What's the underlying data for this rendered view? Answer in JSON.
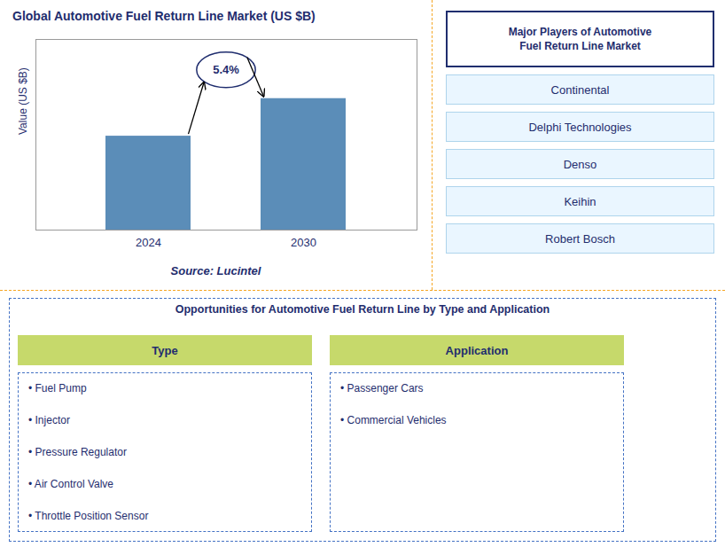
{
  "chart_data": {
    "type": "bar",
    "title": "Global Automotive Fuel Return Line Market (US $B)",
    "ylabel": "Value (US $B)",
    "categories": [
      "2024",
      "2030"
    ],
    "values": [
      3.0,
      4.2
    ],
    "color": "#5B8DB8",
    "ylim": [
      0,
      6.09
    ],
    "yticks": [],
    "grid": false,
    "tick_labels": "x",
    "annotations": [
      "5.4%",
      "Source: Lucintel"
    ]
  },
  "major_players": {
    "title": "Major Players of Automotive\nFuel Return Line Market",
    "items": [
      "Continental",
      "Delphi Technologies",
      "Denso",
      "Keihin",
      "Robert Bosch"
    ]
  },
  "opportunities": {
    "title": "Opportunities for Automotive Fuel Return Line by Type and Application",
    "columns": [
      {
        "header": "Type",
        "items": [
          "• Fuel Pump",
          "• Injector",
          "• Pressure Regulator",
          "• Air Control Valve",
          "• Throttle Position Sensor"
        ]
      },
      {
        "header": "Application",
        "items": [
          "• Passenger Cars",
          "• Commercial Vehicles"
        ]
      }
    ]
  }
}
